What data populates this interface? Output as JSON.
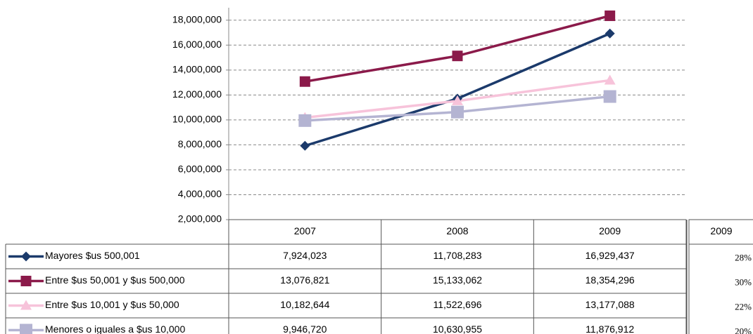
{
  "chart_data": {
    "type": "line",
    "categories": [
      "2007",
      "2008",
      "2009"
    ],
    "ylim": [
      2000000,
      19000000
    ],
    "yticks": [
      {
        "value": 2000000,
        "label": "2,000,000"
      },
      {
        "value": 4000000,
        "label": "4,000,000"
      },
      {
        "value": 6000000,
        "label": "6,000,000"
      },
      {
        "value": 8000000,
        "label": "8,000,000"
      },
      {
        "value": 10000000,
        "label": "10,000,000"
      },
      {
        "value": 12000000,
        "label": "12,000,000"
      },
      {
        "value": 14000000,
        "label": "14,000,000"
      },
      {
        "value": 16000000,
        "label": "16,000,000"
      },
      {
        "value": 18000000,
        "label": "18,000,000"
      }
    ],
    "grid": true,
    "series": [
      {
        "name": "Mayores  $us 500,001",
        "color": "#1b3a6b",
        "marker": "diamond",
        "values": [
          7924023,
          11708283,
          16929437
        ],
        "value_labels": [
          "7,924,023",
          "11,708,283",
          "16,929,437"
        ]
      },
      {
        "name": "Entre $us 50,001 y $us 500,000",
        "color": "#8b1a4a",
        "marker": "square",
        "values": [
          13076821,
          15133062,
          18354296
        ],
        "value_labels": [
          "13,076,821",
          "15,133,062",
          "18,354,296"
        ]
      },
      {
        "name": "Entre $us 10,001 y $us 50,000",
        "color": "#f7c3da",
        "marker": "triangle",
        "values": [
          10182644,
          11522696,
          13177088
        ],
        "value_labels": [
          "10,182,644",
          "11,522,696",
          "13,177,088"
        ]
      },
      {
        "name": "Menores o iguales a  $us 10,000",
        "color": "#b4b4d2",
        "marker": "square",
        "values": [
          9946720,
          10630955,
          11876912
        ],
        "value_labels": [
          "9,946,720",
          "10,630,955",
          "11,876,912"
        ]
      }
    ],
    "side_table": {
      "header": "2009",
      "cells": [
        "28%",
        "30%",
        "22%",
        "20%"
      ]
    }
  }
}
